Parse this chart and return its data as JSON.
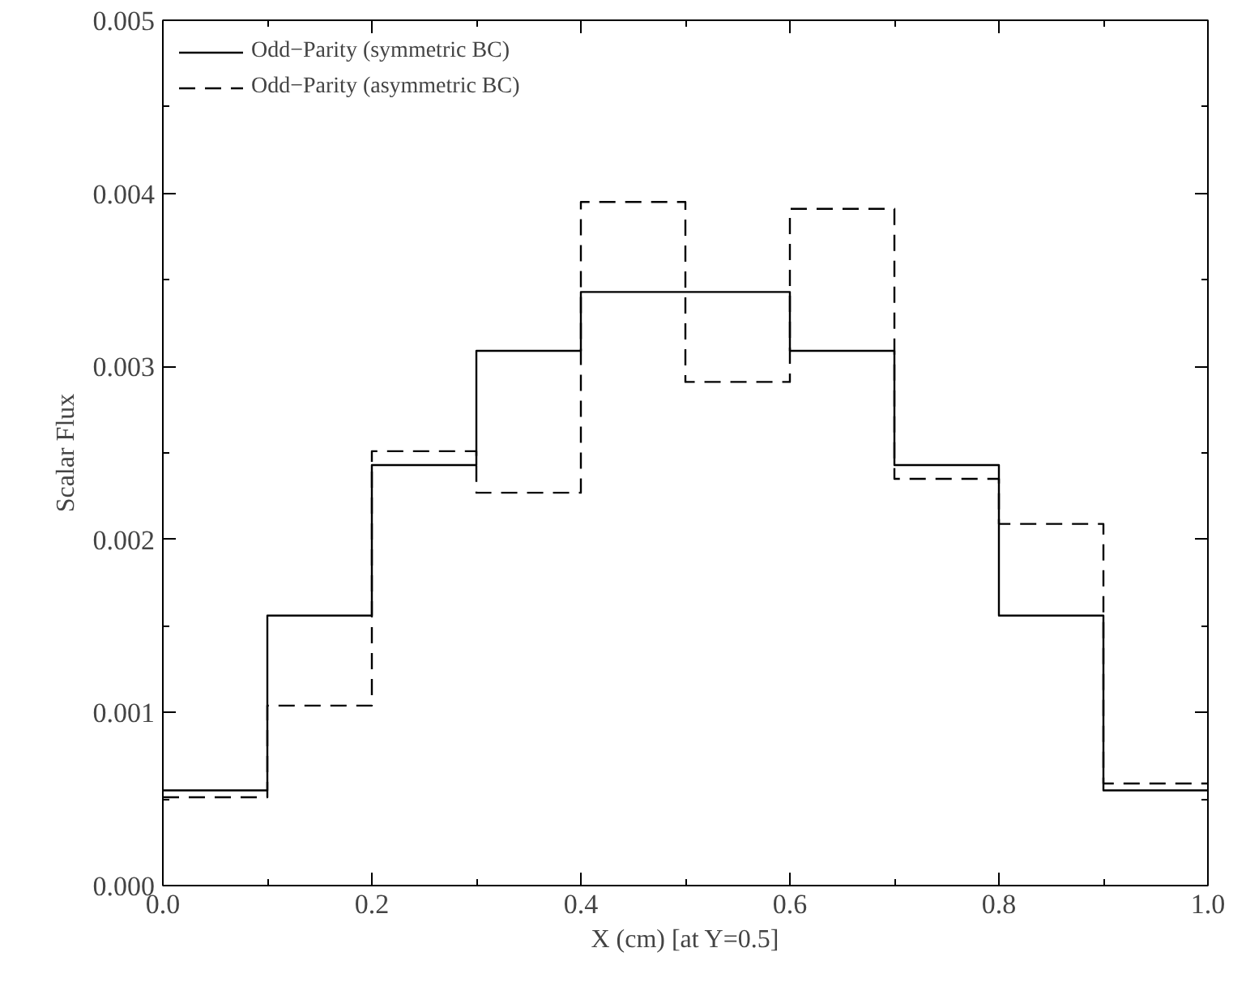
{
  "chart_data": {
    "type": "step",
    "xlabel": "X (cm) [at Y=0.5]",
    "ylabel": "Scalar Flux",
    "x": [
      0.0,
      0.1,
      0.2,
      0.3,
      0.4,
      0.5,
      0.6,
      0.7,
      0.8,
      0.9,
      1.0
    ],
    "series": [
      {
        "name": "Odd−Parity (symmetric BC)",
        "color": "#000000",
        "line_style": "solid",
        "values": [
          0.00055,
          0.00156,
          0.00243,
          0.00309,
          0.00343,
          0.00343,
          0.00309,
          0.00243,
          0.00156,
          0.00055,
          0.00055
        ]
      },
      {
        "name": "Odd−Parity (asymmetric BC)",
        "color": "#000000",
        "line_style": "dashed",
        "values": [
          0.00051,
          0.00104,
          0.00251,
          0.00227,
          0.00395,
          0.00291,
          0.00391,
          0.00235,
          0.00209,
          0.00059,
          0.00059
        ]
      }
    ],
    "xlim": [
      0.0,
      1.0
    ],
    "ylim": [
      0.0,
      0.005
    ],
    "xticks": [
      {
        "value": 0.0,
        "label": "0.0"
      },
      {
        "value": 0.2,
        "label": "0.2"
      },
      {
        "value": 0.4,
        "label": "0.4"
      },
      {
        "value": 0.6,
        "label": "0.6"
      },
      {
        "value": 0.8,
        "label": "0.8"
      },
      {
        "value": 1.0,
        "label": "1.0"
      }
    ],
    "yticks": [
      {
        "value": 0.0,
        "label": "0.000"
      },
      {
        "value": 0.001,
        "label": "0.001"
      },
      {
        "value": 0.002,
        "label": "0.002"
      },
      {
        "value": 0.003,
        "label": "0.003"
      },
      {
        "value": 0.004,
        "label": "0.004"
      },
      {
        "value": 0.005,
        "label": "0.005"
      }
    ],
    "legend": "top left"
  }
}
